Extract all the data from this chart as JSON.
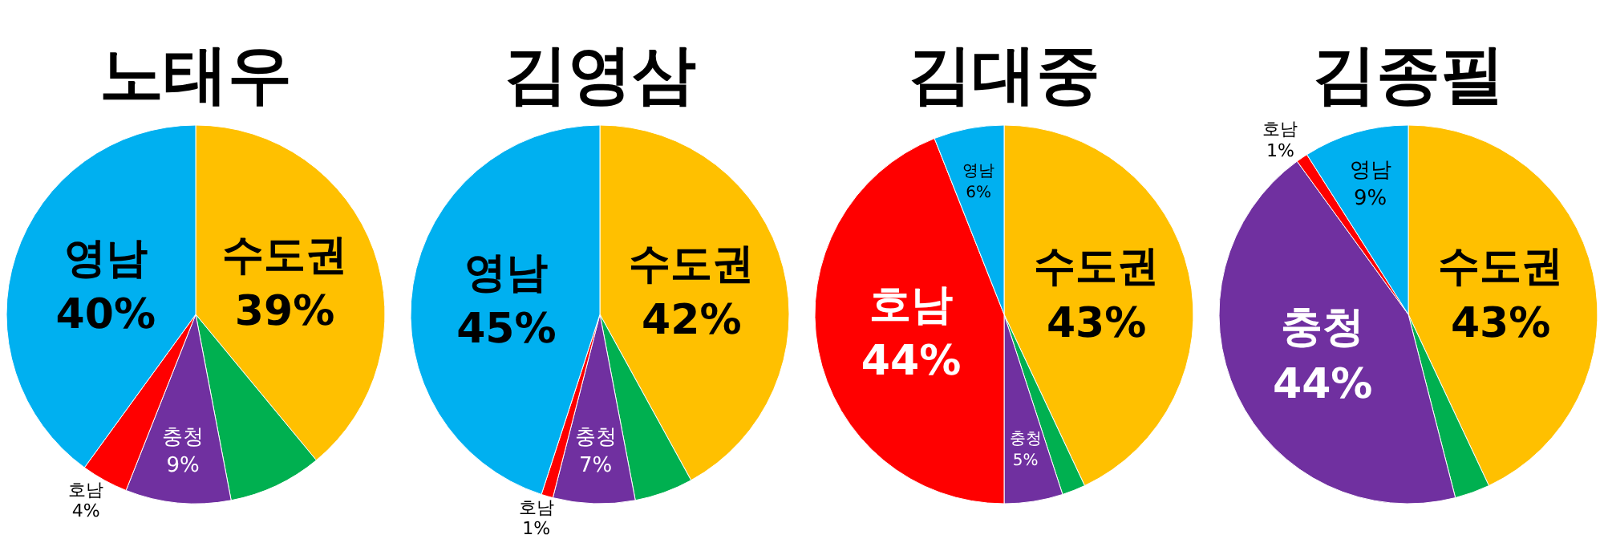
{
  "chart_data": [
    {
      "type": "pie",
      "title": "노태우",
      "categories": [
        "수도권",
        null,
        "충청",
        "호남",
        "영남"
      ],
      "values": [
        39,
        8,
        9,
        4,
        40
      ],
      "value_labels": [
        "39%",
        null,
        "9%",
        "4%",
        "40%"
      ],
      "colors": [
        "#ffc000",
        "#00b050",
        "#7030a0",
        "#ff0000",
        "#00b0f0"
      ]
    },
    {
      "type": "pie",
      "title": "김영삼",
      "categories": [
        "수도권",
        null,
        "충청",
        "호남",
        "영남"
      ],
      "values": [
        42,
        5,
        7,
        1,
        45
      ],
      "value_labels": [
        "42%",
        null,
        "7%",
        "1%",
        "45%"
      ],
      "colors": [
        "#ffc000",
        "#00b050",
        "#7030a0",
        "#ff0000",
        "#00b0f0"
      ]
    },
    {
      "type": "pie",
      "title": "김대중",
      "categories": [
        "수도권",
        null,
        "충청",
        "호남",
        "영남"
      ],
      "values": [
        43,
        2,
        5,
        44,
        6
      ],
      "value_labels": [
        "43%",
        null,
        "5%",
        "44%",
        "6%"
      ],
      "colors": [
        "#ffc000",
        "#00b050",
        "#7030a0",
        "#ff0000",
        "#00b0f0"
      ]
    },
    {
      "type": "pie",
      "title": "김종필",
      "categories": [
        "수도권",
        null,
        "충청",
        "호남",
        "영남"
      ],
      "values": [
        43,
        3,
        44,
        1,
        9
      ],
      "value_labels": [
        "43%",
        null,
        "44%",
        "1%",
        "9%"
      ],
      "colors": [
        "#ffc000",
        "#00b050",
        "#7030a0",
        "#ff0000",
        "#00b0f0"
      ]
    }
  ]
}
